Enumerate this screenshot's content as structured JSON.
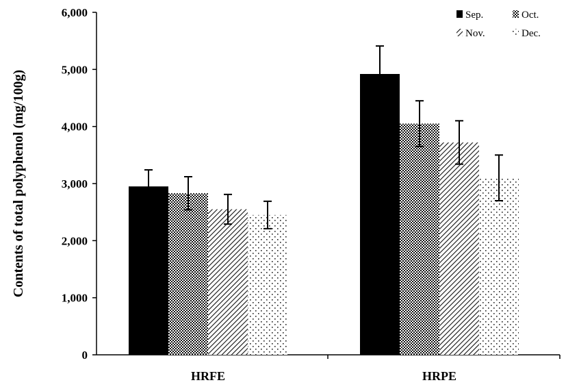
{
  "chart_data": {
    "type": "bar",
    "title": "",
    "xlabel": "",
    "ylabel": "Contents of total polyphenol (mg/100g)",
    "ylim": [
      0,
      6000
    ],
    "yticks": [
      "0",
      "1,000",
      "2,000",
      "3,000",
      "4,000",
      "5,000",
      "6,000"
    ],
    "yticks_values": [
      0,
      1000,
      2000,
      3000,
      4000,
      5000,
      6000
    ],
    "categories": [
      "HRFE",
      "HRPE"
    ],
    "series": [
      {
        "name": "Sep.",
        "pattern": "solid",
        "values": [
          2950,
          4920
        ],
        "errors": [
          290,
          490
        ]
      },
      {
        "name": "Oct.",
        "pattern": "checker",
        "values": [
          2830,
          4050
        ],
        "errors": [
          290,
          400
        ]
      },
      {
        "name": "Nov.",
        "pattern": "diagonal",
        "values": [
          2550,
          3720
        ],
        "errors": [
          260,
          380
        ]
      },
      {
        "name": "Dec.",
        "pattern": "dots",
        "values": [
          2450,
          3100
        ],
        "errors": [
          240,
          400
        ]
      }
    ],
    "legend_position": "top-right",
    "grid": false,
    "colors": {
      "bar_dark": "#000000",
      "bar_fill": "#ffffff",
      "axis": "#000000"
    }
  }
}
